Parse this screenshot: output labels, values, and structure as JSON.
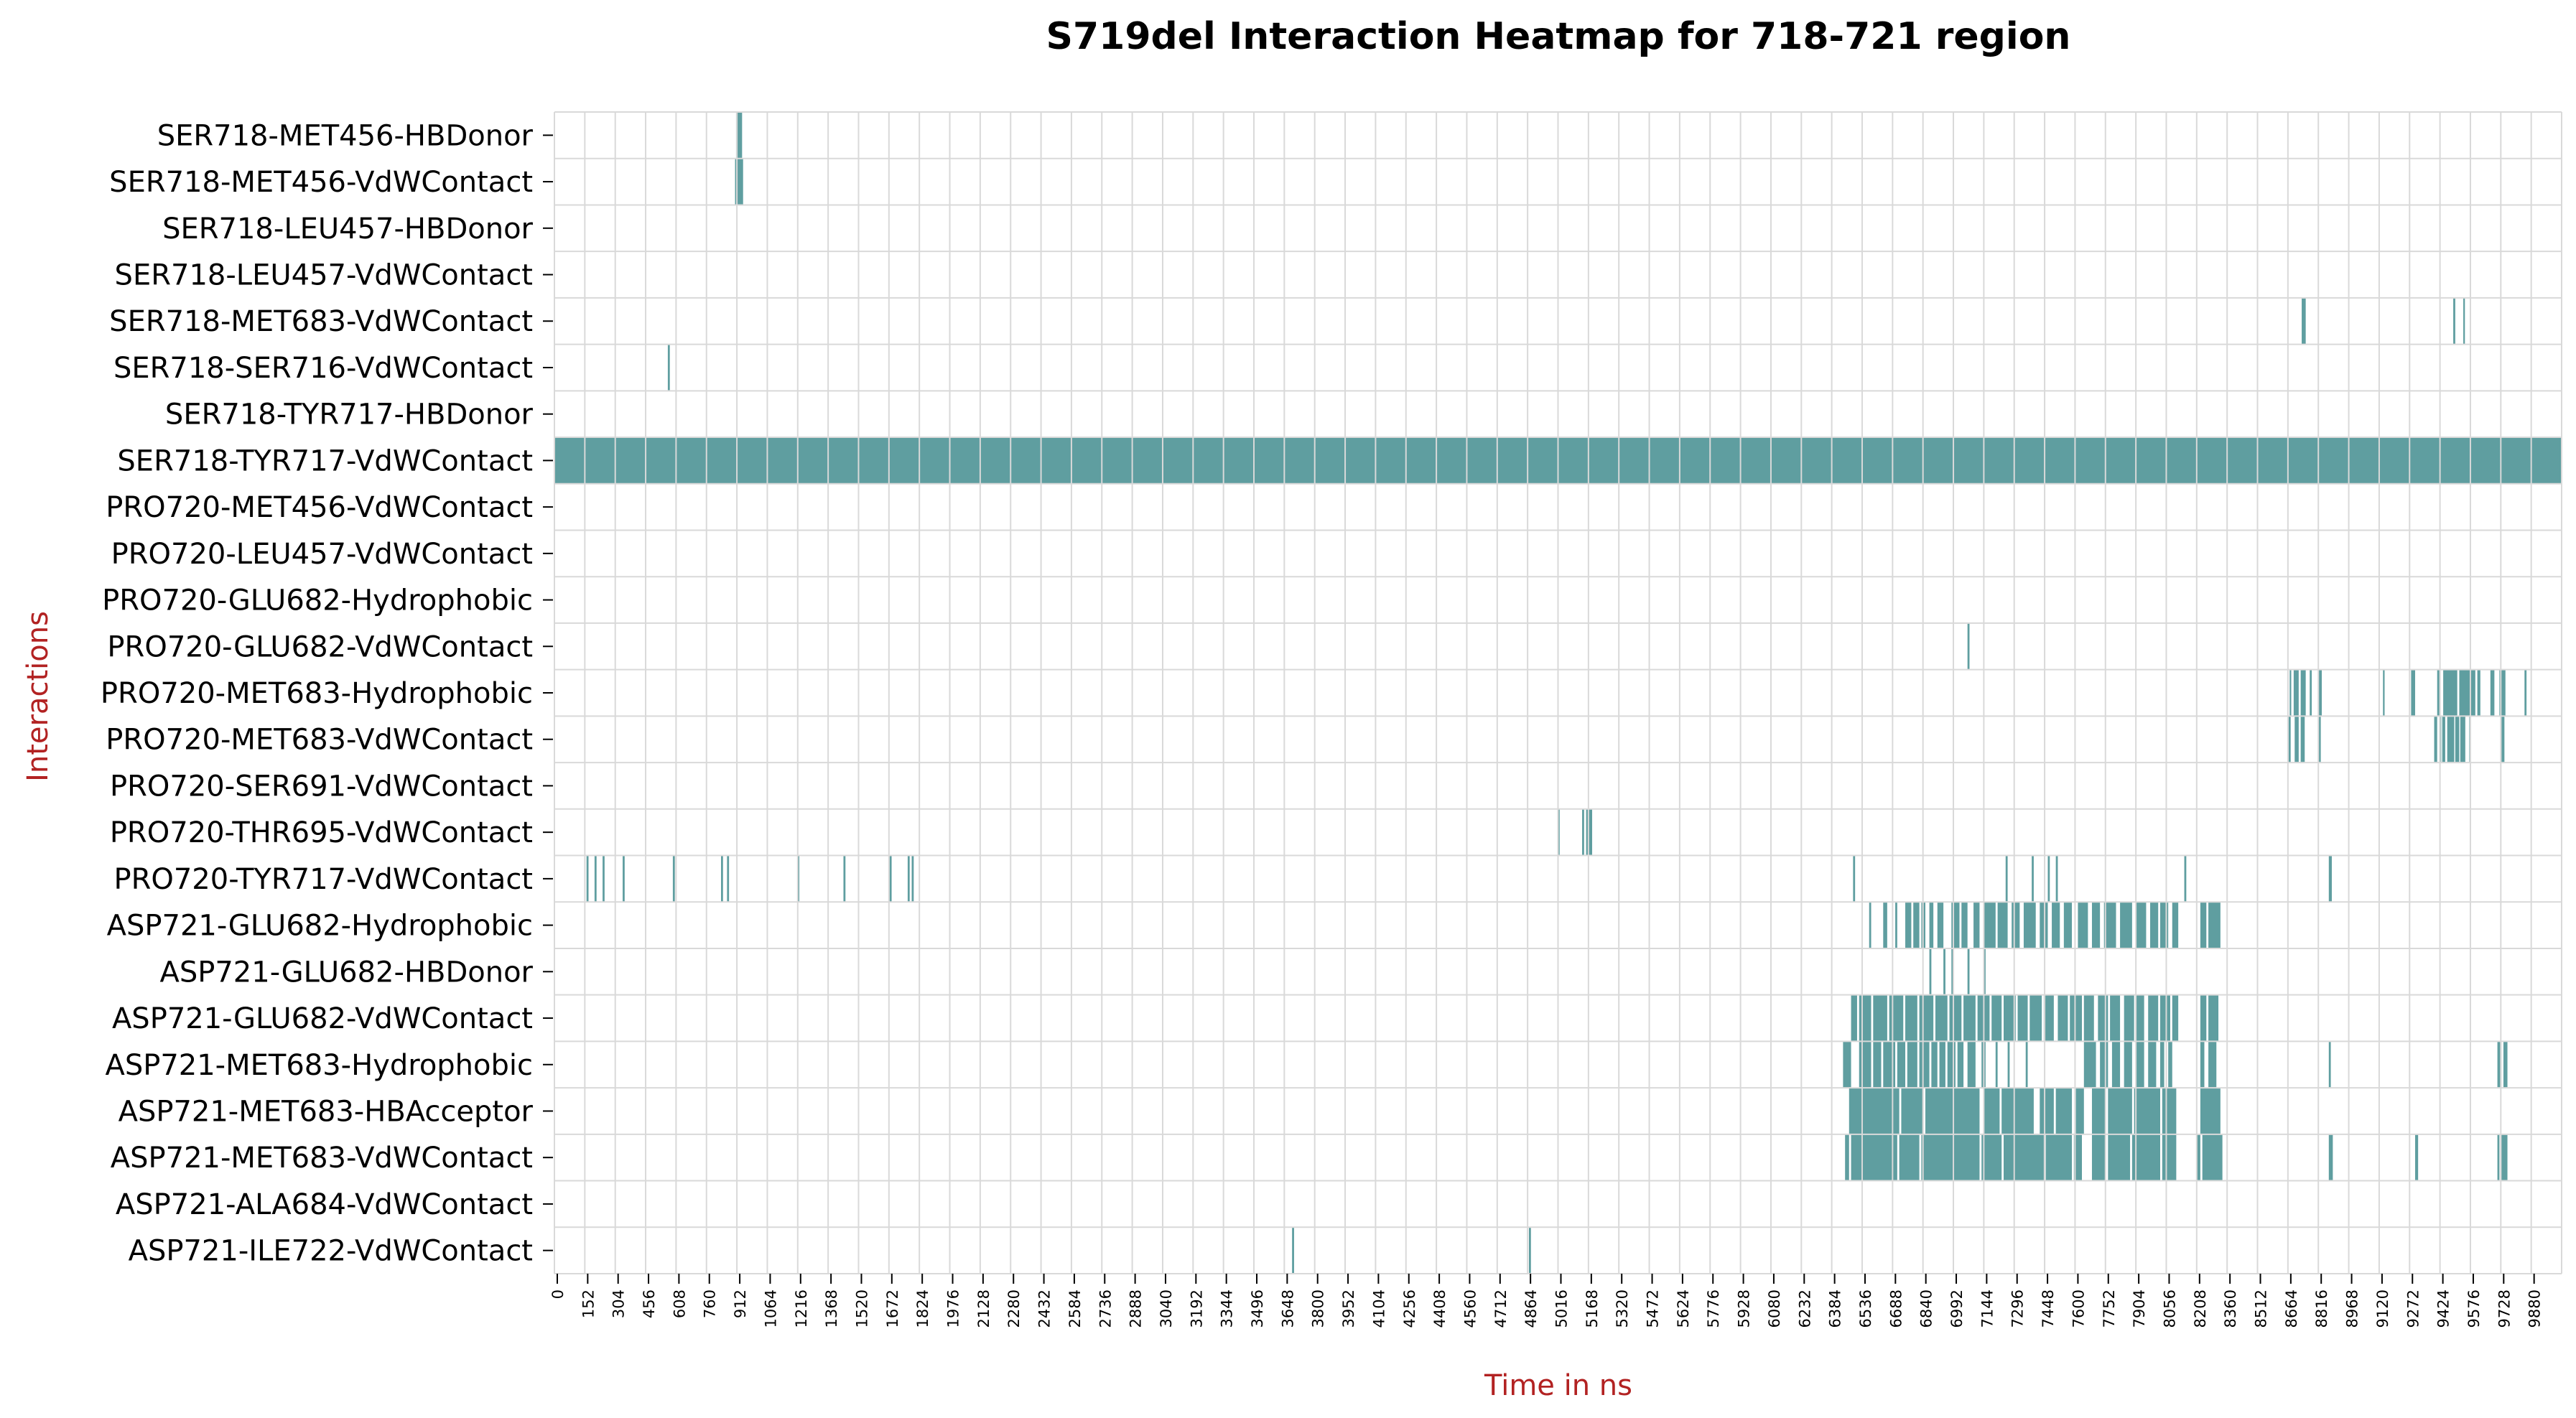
{
  "chart_data": {
    "type": "heatmap",
    "title": "S719del Interaction Heatmap for 718-721 region",
    "xlabel": "Time in ns",
    "ylabel": "Interactions",
    "xlim": [
      0,
      10000
    ],
    "grid": true,
    "legend": "none",
    "colors": {
      "active": "#5f9ea0",
      "background": "#ffffff",
      "grid": "#d9d9d9",
      "axis_label": "#b22222",
      "text": "#000000"
    },
    "xticks": [
      "0",
      "152",
      "304",
      "456",
      "608",
      "760",
      "912",
      "1064",
      "1216",
      "1368",
      "1520",
      "1672",
      "1824",
      "1976",
      "2128",
      "2280",
      "2432",
      "2584",
      "2736",
      "2888",
      "3040",
      "3192",
      "3344",
      "3496",
      "3648",
      "3800",
      "3952",
      "4104",
      "4256",
      "4408",
      "4560",
      "4712",
      "4864",
      "5016",
      "5168",
      "5320",
      "5472",
      "5624",
      "5776",
      "5928",
      "6080",
      "6232",
      "6384",
      "6536",
      "6688",
      "6840",
      "6992",
      "7144",
      "7296",
      "7448",
      "7600",
      "7752",
      "7904",
      "8056",
      "8208",
      "8360",
      "8512",
      "8664",
      "8816",
      "8968",
      "9120",
      "9272",
      "9424",
      "9576",
      "9728",
      "9880"
    ],
    "rows": [
      {
        "name": "SER718-MET456-HBDonor",
        "intervals": [
          [
            905,
            935
          ]
        ]
      },
      {
        "name": "SER718-MET456-VdWContact",
        "intervals": [
          [
            900,
            940
          ]
        ]
      },
      {
        "name": "SER718-LEU457-HBDonor",
        "intervals": []
      },
      {
        "name": "SER718-LEU457-VdWContact",
        "intervals": []
      },
      {
        "name": "SER718-MET683-VdWContact",
        "intervals": [
          [
            8705,
            8725
          ],
          [
            9460,
            9470
          ],
          [
            9510,
            9518
          ]
        ]
      },
      {
        "name": "SER718-SER716-VdWContact",
        "intervals": [
          [
            565,
            575
          ]
        ]
      },
      {
        "name": "SER718-TYR717-HBDonor",
        "intervals": []
      },
      {
        "name": "SER718-TYR717-VdWContact",
        "intervals": [
          [
            0,
            10000
          ]
        ]
      },
      {
        "name": "PRO720-MET456-VdWContact",
        "intervals": []
      },
      {
        "name": "PRO720-LEU457-VdWContact",
        "intervals": []
      },
      {
        "name": "PRO720-GLU682-Hydrophobic",
        "intervals": []
      },
      {
        "name": "PRO720-GLU682-VdWContact",
        "intervals": [
          [
            7040,
            7050
          ]
        ]
      },
      {
        "name": "PRO720-MET683-Hydrophobic",
        "intervals": [
          [
            8645,
            8650
          ],
          [
            8665,
            8690
          ],
          [
            8700,
            8725
          ],
          [
            8745,
            8755
          ],
          [
            8790,
            8805
          ],
          [
            9110,
            9118
          ],
          [
            9250,
            9270
          ],
          [
            9380,
            9395
          ],
          [
            9410,
            9480
          ],
          [
            9490,
            9570
          ],
          [
            9580,
            9595
          ],
          [
            9645,
            9665
          ],
          [
            9690,
            9720
          ],
          [
            9815,
            9825
          ]
        ]
      },
      {
        "name": "PRO720-MET683-VdWContact",
        "intervals": [
          [
            8640,
            8650
          ],
          [
            8670,
            8690
          ],
          [
            8700,
            8720
          ],
          [
            8790,
            8800
          ],
          [
            9365,
            9380
          ],
          [
            9390,
            9400
          ],
          [
            9405,
            9420
          ],
          [
            9430,
            9465
          ],
          [
            9470,
            9490
          ],
          [
            9495,
            9520
          ],
          [
            9540,
            9545
          ],
          [
            9700,
            9715
          ]
        ]
      },
      {
        "name": "PRO720-SER691-VdWContact",
        "intervals": []
      },
      {
        "name": "PRO720-THR695-VdWContact",
        "intervals": [
          [
            5000,
            5008
          ],
          [
            5120,
            5130
          ],
          [
            5140,
            5170
          ]
        ]
      },
      {
        "name": "PRO720-TYR717-VdWContact",
        "intervals": [
          [
            160,
            170
          ],
          [
            200,
            210
          ],
          [
            240,
            250
          ],
          [
            340,
            350
          ],
          [
            590,
            600
          ],
          [
            830,
            840
          ],
          [
            860,
            870
          ],
          [
            1210,
            1220
          ],
          [
            1440,
            1450
          ],
          [
            1670,
            1680
          ],
          [
            1760,
            1770
          ],
          [
            1780,
            1790
          ],
          [
            6470,
            6480
          ],
          [
            7230,
            7240
          ],
          [
            7360,
            7370
          ],
          [
            7440,
            7450
          ],
          [
            7480,
            7490
          ],
          [
            8120,
            8130
          ],
          [
            8840,
            8855
          ]
        ]
      },
      {
        "name": "ASP721-GLU682-Hydrophobic",
        "intervals": [
          [
            6550,
            6560
          ],
          [
            6620,
            6640
          ],
          [
            6680,
            6690
          ],
          [
            6730,
            6760
          ],
          [
            6770,
            6800
          ],
          [
            6810,
            6830
          ],
          [
            6850,
            6870
          ],
          [
            6890,
            6920
          ],
          [
            6960,
            7000
          ],
          [
            7010,
            7040
          ],
          [
            7070,
            7100
          ],
          [
            7120,
            7180
          ],
          [
            7190,
            7240
          ],
          [
            7260,
            7300
          ],
          [
            7320,
            7380
          ],
          [
            7400,
            7440
          ],
          [
            7460,
            7500
          ],
          [
            7520,
            7560
          ],
          [
            7590,
            7640
          ],
          [
            7660,
            7700
          ],
          [
            7720,
            7780
          ],
          [
            7800,
            7860
          ],
          [
            7880,
            7930
          ],
          [
            7950,
            7990
          ],
          [
            8000,
            8040
          ],
          [
            8060,
            8090
          ],
          [
            8200,
            8230
          ],
          [
            8240,
            8300
          ]
        ]
      },
      {
        "name": "ASP721-GLU682-HBDonor",
        "intervals": [
          [
            6850,
            6860
          ],
          [
            6920,
            6930
          ],
          [
            6960,
            6970
          ],
          [
            7040,
            7050
          ],
          [
            7120,
            7130
          ]
        ]
      },
      {
        "name": "ASP721-GLU682-VdWContact",
        "intervals": [
          [
            6460,
            6490
          ],
          [
            6500,
            6560
          ],
          [
            6570,
            6640
          ],
          [
            6650,
            6720
          ],
          [
            6730,
            6790
          ],
          [
            6800,
            6870
          ],
          [
            6880,
            6940
          ],
          [
            6950,
            7010
          ],
          [
            7020,
            7080
          ],
          [
            7090,
            7150
          ],
          [
            7160,
            7210
          ],
          [
            7220,
            7280
          ],
          [
            7290,
            7340
          ],
          [
            7350,
            7410
          ],
          [
            7420,
            7470
          ],
          [
            7490,
            7540
          ],
          [
            7550,
            7610
          ],
          [
            7620,
            7670
          ],
          [
            7690,
            7740
          ],
          [
            7750,
            7800
          ],
          [
            7820,
            7870
          ],
          [
            7880,
            7920
          ],
          [
            7940,
            7990
          ],
          [
            8000,
            8050
          ],
          [
            8060,
            8090
          ],
          [
            8200,
            8230
          ],
          [
            8240,
            8290
          ]
        ]
      },
      {
        "name": "ASP721-MET683-Hydrophobic",
        "intervals": [
          [
            6420,
            6460
          ],
          [
            6500,
            6560
          ],
          [
            6570,
            6610
          ],
          [
            6620,
            6680
          ],
          [
            6690,
            6730
          ],
          [
            6740,
            6790
          ],
          [
            6800,
            6850
          ],
          [
            6860,
            6890
          ],
          [
            6900,
            6930
          ],
          [
            6940,
            6980
          ],
          [
            6990,
            7020
          ],
          [
            7040,
            7080
          ],
          [
            7110,
            7130
          ],
          [
            7180,
            7190
          ],
          [
            7240,
            7250
          ],
          [
            7330,
            7340
          ],
          [
            7620,
            7680
          ],
          [
            7700,
            7740
          ],
          [
            7760,
            7800
          ],
          [
            7820,
            7860
          ],
          [
            7880,
            7920
          ],
          [
            7940,
            7980
          ],
          [
            8000,
            8020
          ],
          [
            8040,
            8060
          ],
          [
            8200,
            8220
          ],
          [
            8240,
            8280
          ],
          [
            8840,
            8850
          ],
          [
            9680,
            9700
          ],
          [
            9710,
            9730
          ]
        ]
      },
      {
        "name": "ASP721-MET683-HBAcceptor",
        "intervals": [
          [
            6450,
            6700
          ],
          [
            6710,
            6820
          ],
          [
            6830,
            7100
          ],
          [
            7120,
            7200
          ],
          [
            7210,
            7370
          ],
          [
            7400,
            7470
          ],
          [
            7480,
            7560
          ],
          [
            7580,
            7620
          ],
          [
            7660,
            7730
          ],
          [
            7740,
            7860
          ],
          [
            7870,
            8000
          ],
          [
            8010,
            8080
          ],
          [
            8200,
            8300
          ]
        ]
      },
      {
        "name": "ASP721-MET683-VdWContact",
        "intervals": [
          [
            6430,
            6450
          ],
          [
            6460,
            6690
          ],
          [
            6700,
            6800
          ],
          [
            6810,
            7100
          ],
          [
            7110,
            7210
          ],
          [
            7220,
            7420
          ],
          [
            7430,
            7560
          ],
          [
            7570,
            7610
          ],
          [
            7660,
            7730
          ],
          [
            7740,
            7850
          ],
          [
            7860,
            8000
          ],
          [
            8010,
            8080
          ],
          [
            8180,
            8200
          ],
          [
            8210,
            8310
          ],
          [
            8840,
            8860
          ],
          [
            9270,
            9285
          ],
          [
            9680,
            9690
          ],
          [
            9700,
            9730
          ]
        ]
      },
      {
        "name": "ASP721-ALA684-VdWContact",
        "intervals": []
      },
      {
        "name": "ASP721-ILE722-VdWContact",
        "intervals": [
          [
            3675,
            3685
          ],
          [
            4855,
            4865
          ]
        ]
      }
    ]
  }
}
